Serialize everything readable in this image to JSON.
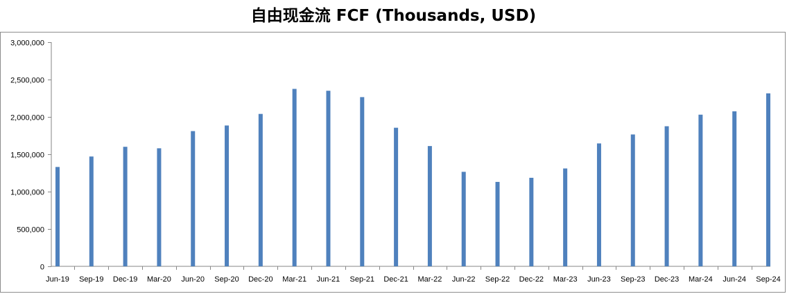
{
  "chart_data": {
    "type": "bar",
    "title": "自由现金流 FCF (Thousands, USD)",
    "xlabel": "",
    "ylabel": "",
    "categories": [
      "Jun-19",
      "Sep-19",
      "Dec-19",
      "Mar-20",
      "Jun-20",
      "Sep-20",
      "Dec-20",
      "Mar-21",
      "Jun-21",
      "Sep-21",
      "Dec-21",
      "Mar-22",
      "Jun-22",
      "Sep-22",
      "Dec-22",
      "Mar-23",
      "Jun-23",
      "Sep-23",
      "Dec-23",
      "Mar-24",
      "Jun-24",
      "Sep-24"
    ],
    "values": [
      1330000,
      1470000,
      1600000,
      1580000,
      1810000,
      1885000,
      2040000,
      2375000,
      2350000,
      2265000,
      1855000,
      1610000,
      1265000,
      1130000,
      1185000,
      1310000,
      1645000,
      1765000,
      1875000,
      2030000,
      2075000,
      2315000
    ],
    "ylim": [
      0,
      3000000
    ],
    "yticks": [
      0,
      500000,
      1000000,
      1500000,
      2000000,
      2500000,
      3000000
    ],
    "ytick_labels": [
      "0",
      "500,000",
      "1,000,000",
      "1,500,000",
      "2,000,000",
      "2,500,000",
      "3,000,000"
    ],
    "grid": false,
    "legend": "none",
    "bar_color": "#4f81bd"
  }
}
